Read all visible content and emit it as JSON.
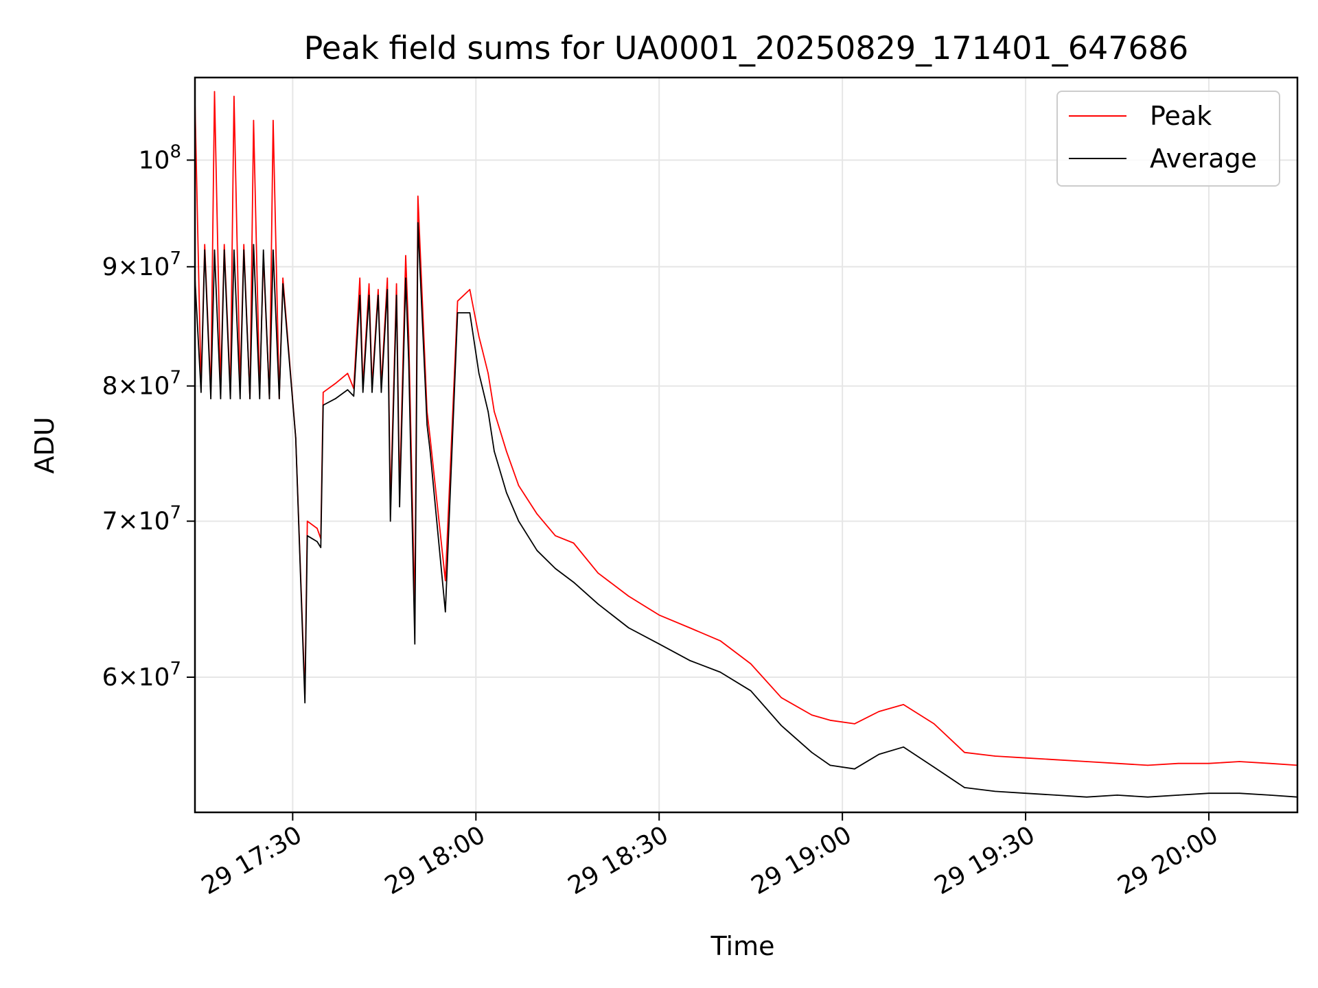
{
  "chart_data": {
    "type": "line",
    "title": "Peak field sums for UA0001_20250829_171401_647686",
    "xlabel": "Time",
    "ylabel": "ADU",
    "yscale": "log",
    "ylim": [
      52500000,
      108500000
    ],
    "xlim_minutes_after_1700": [
      14.0,
      194.5
    ],
    "grid": true,
    "legend_position": "top-right",
    "x_ticks": [
      {
        "minutes": 30,
        "label": "29 17:30"
      },
      {
        "minutes": 60,
        "label": "29 18:00"
      },
      {
        "minutes": 90,
        "label": "29 18:30"
      },
      {
        "minutes": 120,
        "label": "29 19:00"
      },
      {
        "minutes": 150,
        "label": "29 19:30"
      },
      {
        "minutes": 180,
        "label": "29 20:00"
      }
    ],
    "y_ticks": [
      {
        "value": 60000000,
        "mantissa": "6",
        "exponent": "7"
      },
      {
        "value": 70000000,
        "mantissa": "7",
        "exponent": "7"
      },
      {
        "value": 80000000,
        "mantissa": "8",
        "exponent": "7"
      },
      {
        "value": 90000000,
        "mantissa": "9",
        "exponent": "7"
      },
      {
        "value": 100000000,
        "mantissa": "",
        "exponent": "8"
      }
    ],
    "times_minutes_after_1700": [
      14.0,
      15.0,
      15.6,
      16.6,
      17.2,
      18.2,
      18.8,
      19.8,
      20.4,
      21.4,
      22.0,
      23.0,
      23.6,
      24.6,
      25.2,
      26.2,
      26.8,
      27.8,
      28.4,
      30.5,
      32.0,
      32.4,
      34.0,
      34.6,
      35.0,
      37.0,
      39.0,
      40.0,
      41.0,
      41.5,
      42.5,
      43.0,
      44.0,
      44.5,
      45.5,
      46.0,
      47.0,
      47.5,
      48.5,
      49.0,
      50.0,
      50.5,
      52.0,
      52.5,
      55.0,
      57.0,
      59.0,
      60.5,
      61.0,
      62.0,
      63.0,
      65.0,
      67.0,
      70.0,
      73.0,
      76.0,
      80.0,
      85.0,
      90.0,
      95.0,
      100.0,
      105.0,
      110.0,
      115.0,
      118.0,
      122.0,
      126.0,
      130.0,
      135.0,
      140.0,
      145.0,
      150.0,
      155.0,
      160.0,
      165.0,
      170.0,
      175.0,
      180.0,
      185.0,
      190.0,
      194.5
    ],
    "series": [
      {
        "name": "Peak",
        "color": "#ff0000",
        "values": [
          106000000,
          80000000,
          92000000,
          79500000,
          107000000,
          80000000,
          92000000,
          79500000,
          106500000,
          80000000,
          92000000,
          79000000,
          104000000,
          79500000,
          91000000,
          79000000,
          104000000,
          79000000,
          89000000,
          76000000,
          59000000,
          70000000,
          69500000,
          68800000,
          79500000,
          80200000,
          81000000,
          79800000,
          89000000,
          80000000,
          88500000,
          80000000,
          88000000,
          80000000,
          89000000,
          71000000,
          88500000,
          72000000,
          91000000,
          84000000,
          64000000,
          96500000,
          78000000,
          76000000,
          66000000,
          87000000,
          88000000,
          84000000,
          83000000,
          81000000,
          78000000,
          75000000,
          72500000,
          70500000,
          69000000,
          68500000,
          66500000,
          65000000,
          63800000,
          63000000,
          62200000,
          60800000,
          58800000,
          57800000,
          57500000,
          57300000,
          58000000,
          58400000,
          57300000,
          55700000,
          55500000,
          55400000,
          55300000,
          55200000,
          55100000,
          55000000,
          55100000,
          55100000,
          55200000,
          55100000,
          55000000
        ]
      },
      {
        "name": "Average",
        "color": "#000000",
        "values": [
          89000000,
          79500000,
          91500000,
          79000000,
          91500000,
          79000000,
          91500000,
          79000000,
          91500000,
          79000000,
          91500000,
          79000000,
          92000000,
          79000000,
          91500000,
          79000000,
          91500000,
          79000000,
          88500000,
          76000000,
          58500000,
          69000000,
          68600000,
          68200000,
          78500000,
          79000000,
          79700000,
          79200000,
          87500000,
          79500000,
          87500000,
          79500000,
          87500000,
          79500000,
          88000000,
          70000000,
          87500000,
          71000000,
          89000000,
          82000000,
          62000000,
          94000000,
          77000000,
          75000000,
          64000000,
          86000000,
          86000000,
          81000000,
          80000000,
          78000000,
          75000000,
          72000000,
          70000000,
          68000000,
          66800000,
          65900000,
          64500000,
          63000000,
          62000000,
          61000000,
          60300000,
          59200000,
          57200000,
          55700000,
          55000000,
          54800000,
          55600000,
          56000000,
          54900000,
          53800000,
          53600000,
          53500000,
          53400000,
          53300000,
          53400000,
          53300000,
          53400000,
          53500000,
          53500000,
          53400000,
          53300000
        ]
      }
    ]
  }
}
